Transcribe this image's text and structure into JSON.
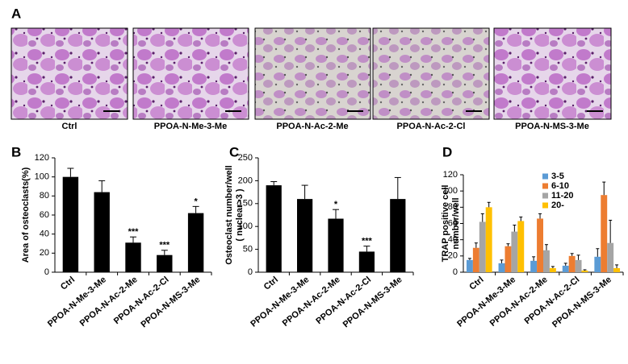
{
  "panel_a": {
    "label": "A",
    "captions": [
      "Ctrl",
      "PPOA-N-Me-3-Me",
      "PPOA-N-Ac-2-Me",
      "PPOA-N-Ac-2-Cl",
      "PPOA-N-MS-3-Me"
    ]
  },
  "chart_data": [
    {
      "type": "bar",
      "panel_label": "B",
      "ylabel": [
        "Area of osteoclasts(%)"
      ],
      "categories": [
        "Ctrl",
        "PPOA-N-Me-3-Me",
        "PPOA-N-Ac-2-Me",
        "PPOA-N-Ac-2-Cl",
        "PPOA-N-MS-3-Me"
      ],
      "values": [
        100,
        84,
        31,
        18,
        62
      ],
      "errors": [
        9,
        12,
        6,
        5,
        7
      ],
      "significance": [
        null,
        null,
        "***",
        "***",
        "*"
      ],
      "color": "#000000",
      "ylim": [
        0,
        120
      ],
      "yticks": [
        0,
        20,
        40,
        60,
        80,
        100,
        120
      ]
    },
    {
      "type": "bar",
      "panel_label": "C",
      "ylabel": [
        "Osteoclast  number/well",
        "( nuclear>3 )"
      ],
      "categories": [
        "Ctrl",
        "PPOA-N-Me-3-Me",
        "PPOA-N-Ac-2-Me",
        "PPOA-N-Ac-2-Cl",
        "PPOA-N-MS-3-Me"
      ],
      "values": [
        190,
        160,
        117,
        45,
        160
      ],
      "errors": [
        8,
        30,
        20,
        12,
        47
      ],
      "significance": [
        null,
        null,
        "*",
        "***",
        null
      ],
      "color": "#000000",
      "ylim": [
        0,
        250
      ],
      "yticks": [
        0,
        50,
        100,
        150,
        200,
        250
      ]
    },
    {
      "type": "grouped_bar",
      "panel_label": "D",
      "ylabel": [
        "TRAP positive cell",
        "number/well"
      ],
      "categories": [
        "Ctrl",
        "PPOA-N-Me-3-Me",
        "PPOA-N-Ac-2-Me",
        "PPOA-N-Ac-2-Cl",
        "PPOA-N-MS-3-Me"
      ],
      "series": [
        {
          "name": "3-5",
          "color": "#5b9bd5",
          "values": [
            15,
            11,
            14,
            8,
            19
          ],
          "errors": [
            2,
            4,
            5,
            3,
            10
          ]
        },
        {
          "name": "6-10",
          "color": "#ed7d31",
          "values": [
            30,
            32,
            66,
            20,
            95
          ],
          "errors": [
            6,
            3,
            6,
            3,
            16
          ]
        },
        {
          "name": "11-20",
          "color": "#a5a5a5",
          "values": [
            62,
            50,
            27,
            15,
            36
          ],
          "errors": [
            10,
            8,
            7,
            6,
            28
          ]
        },
        {
          "name": "20-",
          "color": "#ffc000",
          "values": [
            80,
            63,
            5,
            2,
            5
          ],
          "errors": [
            6,
            5,
            2,
            1,
            4
          ]
        }
      ],
      "legend": "upper right",
      "ylim": [
        0,
        120
      ],
      "yticks": [
        0,
        20,
        40,
        60,
        80,
        100,
        120
      ]
    }
  ]
}
